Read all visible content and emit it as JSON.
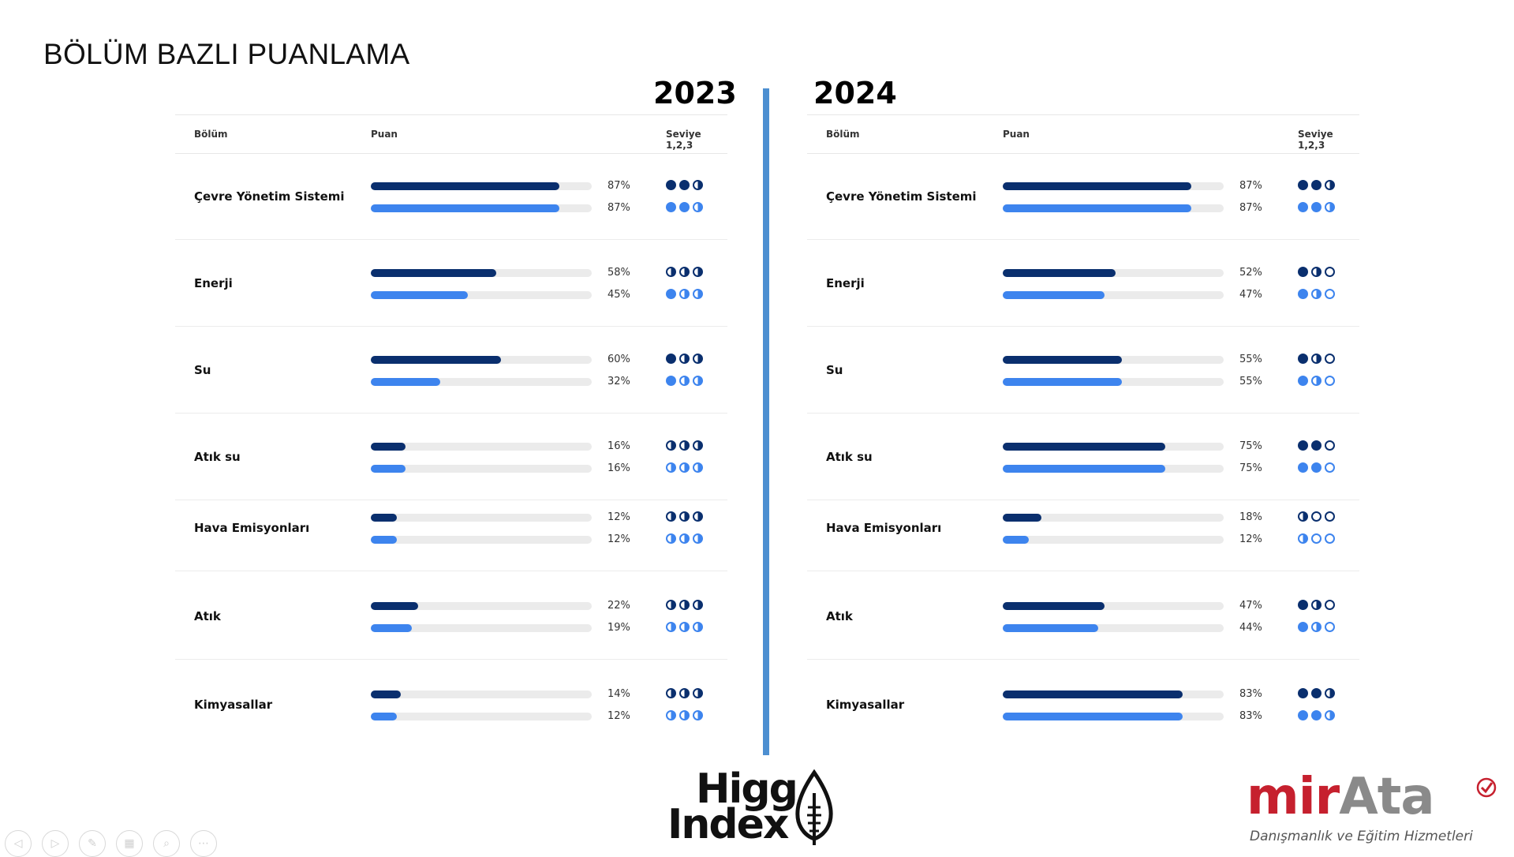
{
  "slide_title": "BÖLÜM BAZLI PUANLAMA",
  "panels": [
    {
      "year": "2023",
      "header": {
        "col1": "Bölüm",
        "col2": "Puan",
        "col3": "Seviye 1,2,3"
      },
      "rows": [
        {
          "label": "Çevre Yönetim Sistemi",
          "a": {
            "value": 87,
            "pct": "87%",
            "levels": [
              "full",
              "full",
              "half"
            ]
          },
          "b": {
            "value": 87,
            "pct": "87%",
            "levels": [
              "full",
              "full",
              "half"
            ]
          }
        },
        {
          "label": "Enerji",
          "a": {
            "value": 58,
            "pct": "58%",
            "levels": [
              "half",
              "half",
              "half"
            ]
          },
          "b": {
            "value": 45,
            "pct": "45%",
            "levels": [
              "full",
              "half",
              "half"
            ]
          }
        },
        {
          "label": "Su",
          "a": {
            "value": 60,
            "pct": "60%",
            "levels": [
              "full",
              "half",
              "half"
            ]
          },
          "b": {
            "value": 32,
            "pct": "32%",
            "levels": [
              "full",
              "half",
              "half"
            ]
          }
        },
        {
          "label": "Atık su",
          "a": {
            "value": 16,
            "pct": "16%",
            "levels": [
              "half",
              "half",
              "half"
            ]
          },
          "b": {
            "value": 16,
            "pct": "16%",
            "levels": [
              "half",
              "half",
              "half"
            ]
          }
        },
        {
          "label": "Hava Emisyonları",
          "a": {
            "value": 12,
            "pct": "12%",
            "levels": [
              "half",
              "half",
              "half"
            ]
          },
          "b": {
            "value": 12,
            "pct": "12%",
            "levels": [
              "half",
              "half",
              "half"
            ]
          }
        },
        {
          "label": "Atık",
          "a": {
            "value": 22,
            "pct": "22%",
            "levels": [
              "half",
              "half",
              "half"
            ]
          },
          "b": {
            "value": 19,
            "pct": "19%",
            "levels": [
              "half",
              "half",
              "half"
            ]
          }
        },
        {
          "label": "Kimyasallar",
          "a": {
            "value": 14,
            "pct": "14%",
            "levels": [
              "half",
              "half",
              "half"
            ]
          },
          "b": {
            "value": 12,
            "pct": "12%",
            "levels": [
              "half",
              "half",
              "half"
            ]
          }
        }
      ]
    },
    {
      "year": "2024",
      "header": {
        "col1": "Bölüm",
        "col2": "Puan",
        "col3": "Seviye 1,2,3"
      },
      "rows": [
        {
          "label": "Çevre Yönetim Sistemi",
          "a": {
            "value": 87,
            "pct": "87%",
            "levels": [
              "full",
              "full",
              "half"
            ]
          },
          "b": {
            "value": 87,
            "pct": "87%",
            "levels": [
              "full",
              "full",
              "half"
            ]
          }
        },
        {
          "label": "Enerji",
          "a": {
            "value": 52,
            "pct": "52%",
            "levels": [
              "full",
              "half",
              "empty"
            ]
          },
          "b": {
            "value": 47,
            "pct": "47%",
            "levels": [
              "full",
              "half",
              "empty"
            ]
          }
        },
        {
          "label": "Su",
          "a": {
            "value": 55,
            "pct": "55%",
            "levels": [
              "full",
              "half",
              "empty"
            ]
          },
          "b": {
            "value": 55,
            "pct": "55%",
            "levels": [
              "full",
              "half",
              "empty"
            ]
          }
        },
        {
          "label": "Atık su",
          "a": {
            "value": 75,
            "pct": "75%",
            "levels": [
              "full",
              "full",
              "empty"
            ]
          },
          "b": {
            "value": 75,
            "pct": "75%",
            "levels": [
              "full",
              "full",
              "empty"
            ]
          }
        },
        {
          "label": "Hava Emisyonları",
          "a": {
            "value": 18,
            "pct": "18%",
            "levels": [
              "half",
              "empty",
              "empty"
            ]
          },
          "b": {
            "value": 12,
            "pct": "12%",
            "levels": [
              "half",
              "empty",
              "empty"
            ]
          }
        },
        {
          "label": "Atık",
          "a": {
            "value": 47,
            "pct": "47%",
            "levels": [
              "full",
              "half",
              "empty"
            ]
          },
          "b": {
            "value": 44,
            "pct": "44%",
            "levels": [
              "full",
              "half",
              "empty"
            ]
          }
        },
        {
          "label": "Kimyasallar",
          "a": {
            "value": 83,
            "pct": "83%",
            "levels": [
              "full",
              "full",
              "half"
            ]
          },
          "b": {
            "value": 83,
            "pct": "83%",
            "levels": [
              "full",
              "full",
              "half"
            ]
          }
        }
      ]
    }
  ],
  "logos": {
    "higg_line1": "Higg",
    "higg_line2": "Index",
    "mirata_mir": "mir",
    "mirata_ata": "Ata",
    "mirata_tagline": "Danışmanlık ve Eğitim Hizmetleri"
  },
  "colors": {
    "series_a": "#0a2f6e",
    "series_b": "#3d84ee",
    "divider": "#4d8fd1",
    "brand_red": "#c6202e"
  },
  "nav_controls": [
    {
      "name": "prev-slide-icon",
      "glyph": "◁"
    },
    {
      "name": "next-slide-icon",
      "glyph": "▷"
    },
    {
      "name": "pen-icon",
      "glyph": "✎"
    },
    {
      "name": "slides-grid-icon",
      "glyph": "▦"
    },
    {
      "name": "zoom-icon",
      "glyph": "⌕"
    },
    {
      "name": "more-options-icon",
      "glyph": "⋯"
    }
  ]
}
